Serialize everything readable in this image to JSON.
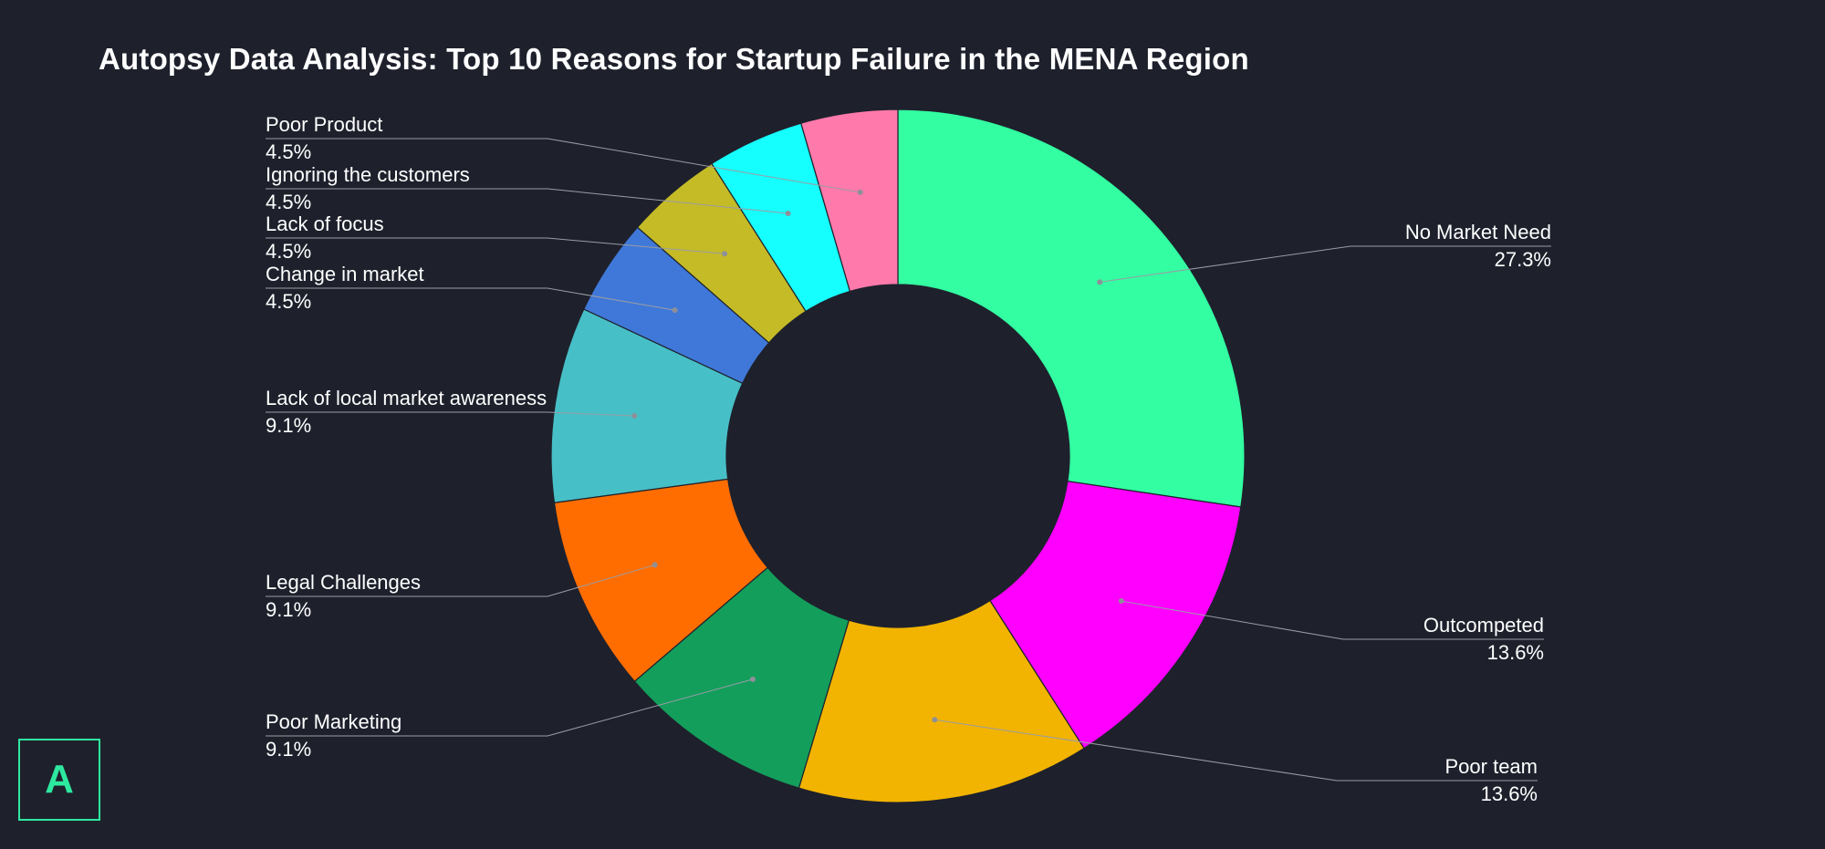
{
  "title": "Autopsy Data Analysis: Top 10 Reasons for Startup Failure in the MENA Region",
  "logo": {
    "letter": "A",
    "color": "#2ee8a0"
  },
  "chart_data": {
    "type": "pie",
    "style": "donut",
    "title": "Autopsy Data Analysis: Top 10 Reasons for Startup Failure in the MENA Region",
    "legend": "none",
    "slices": [
      {
        "label": "No Market Need",
        "value": 27.3,
        "display": "27.3%",
        "color": "#33ffa2"
      },
      {
        "label": "Outcompeted",
        "value": 13.6,
        "display": "13.6%",
        "color": "#ff00ff"
      },
      {
        "label": "Poor team",
        "value": 13.6,
        "display": "13.6%",
        "color": "#f2b400"
      },
      {
        "label": "Poor Marketing",
        "value": 9.1,
        "display": "9.1%",
        "color": "#139e5c"
      },
      {
        "label": "Legal Challenges",
        "value": 9.1,
        "display": "9.1%",
        "color": "#ff6d00"
      },
      {
        "label": "Lack of local market awareness",
        "value": 9.1,
        "display": "9.1%",
        "color": "#47bfc6"
      },
      {
        "label": "Change in market",
        "value": 4.5,
        "display": "4.5%",
        "color": "#3f78d8"
      },
      {
        "label": "Lack of focus",
        "value": 4.5,
        "display": "4.5%",
        "color": "#c4bb27"
      },
      {
        "label": "Ignoring the customers",
        "value": 4.5,
        "display": "4.5%",
        "color": "#16ffff"
      },
      {
        "label": "Poor Product",
        "value": 4.5,
        "display": "4.5%",
        "color": "#ff7aab"
      }
    ]
  }
}
